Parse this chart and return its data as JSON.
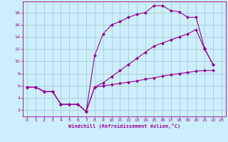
{
  "bg_color": "#cceeff",
  "line_color": "#990099",
  "grid_color": "#aacccc",
  "xlabel": "Windchill (Refroidissement éolien,°C)",
  "xlim": [
    -0.5,
    23.5
  ],
  "ylim": [
    1.0,
    19.8
  ],
  "xticks": [
    0,
    1,
    2,
    3,
    4,
    5,
    6,
    7,
    8,
    9,
    10,
    11,
    12,
    13,
    14,
    15,
    16,
    17,
    18,
    19,
    20,
    21,
    22,
    23
  ],
  "yticks": [
    2,
    4,
    6,
    8,
    10,
    12,
    14,
    16,
    18
  ],
  "line1_x": [
    0,
    1,
    2,
    3,
    4,
    5,
    6,
    7,
    8,
    9,
    10,
    11,
    12,
    13,
    14,
    15,
    16,
    17,
    18,
    19,
    20,
    21,
    22
  ],
  "line1_y": [
    5.8,
    5.8,
    5.1,
    5.1,
    3.0,
    3.0,
    3.0,
    1.8,
    11.0,
    14.5,
    16.0,
    16.5,
    17.2,
    17.7,
    18.0,
    19.1,
    19.1,
    18.3,
    18.1,
    17.2,
    17.2,
    12.1,
    9.5
  ],
  "line2_x": [
    0,
    1,
    2,
    3,
    4,
    5,
    6,
    7,
    8,
    9,
    10,
    11,
    12,
    13,
    14,
    15,
    16,
    17,
    18,
    19,
    20,
    21,
    22
  ],
  "line2_y": [
    5.8,
    5.8,
    5.1,
    5.1,
    3.0,
    3.0,
    3.0,
    1.8,
    5.8,
    6.0,
    6.2,
    6.4,
    6.6,
    6.8,
    7.1,
    7.3,
    7.6,
    7.8,
    8.0,
    8.2,
    8.4,
    8.5,
    8.5
  ],
  "line3_x": [
    0,
    1,
    2,
    3,
    4,
    5,
    6,
    7,
    8,
    9,
    10,
    11,
    12,
    13,
    14,
    15,
    16,
    17,
    18,
    19,
    20,
    21,
    22
  ],
  "line3_y": [
    5.8,
    5.8,
    5.1,
    5.1,
    3.0,
    3.0,
    3.0,
    1.8,
    5.8,
    6.5,
    7.5,
    8.5,
    9.5,
    10.5,
    11.5,
    12.5,
    13.0,
    13.5,
    14.0,
    14.5,
    15.2,
    12.0,
    9.5
  ],
  "marker": "D",
  "marker_size": 2.5
}
